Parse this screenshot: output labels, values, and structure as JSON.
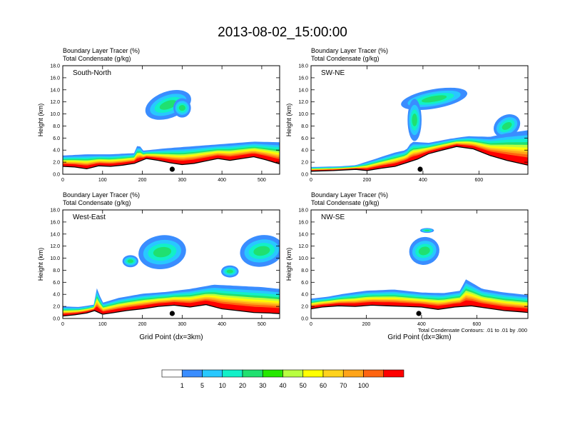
{
  "title": "2013-08-02_15:00:00",
  "colors": {
    "bins": [
      "#ffffff",
      "#3a8dff",
      "#28c8ff",
      "#12f0c8",
      "#20e070",
      "#26e800",
      "#b8ff40",
      "#ffff00",
      "#ffd21c",
      "#ffa418",
      "#ff6410",
      "#ff0000"
    ],
    "contour": "#000000",
    "terrain": "#000000"
  },
  "colorbar": {
    "labels": [
      "1",
      "5",
      "10",
      "20",
      "30",
      "40",
      "50",
      "60",
      "70",
      "100"
    ]
  },
  "footnote": "Total Condensate Contours: .01 to .01 by .000",
  "chart_data": [
    {
      "type": "heatmap",
      "name": "South-North",
      "header1": "Boundary Layer Tracer    (%)",
      "header2": "Total Condensate    (g/kg)",
      "ylabel": "Height (km)",
      "xlabel": "",
      "xlim": [
        0,
        545
      ],
      "ylim": [
        0,
        18
      ],
      "xticks": [
        "0",
        "100",
        "200",
        "300",
        "400",
        "500"
      ],
      "yticks": [
        "0.0",
        "2.0",
        "4.0",
        "6.0",
        "8.0",
        "10.0",
        "12.0",
        "14.0",
        "16.0",
        "18.0"
      ],
      "marker_x": 275,
      "pbl_x": [
        0,
        60,
        120,
        180,
        190,
        200,
        260,
        320,
        360,
        420,
        480,
        545
      ],
      "pbl_top": [
        3.1,
        3.3,
        3.3,
        3.5,
        5.2,
        3.9,
        4.3,
        4.6,
        4.8,
        5.1,
        5.4,
        5.3
      ],
      "terrain_x": [
        0,
        30,
        60,
        90,
        120,
        150,
        180,
        210,
        240,
        270,
        300,
        330,
        360,
        390,
        420,
        450,
        480,
        510,
        545
      ],
      "terrain_z": [
        1.3,
        1.2,
        0.9,
        1.4,
        1.3,
        1.5,
        1.8,
        2.6,
        2.3,
        1.9,
        1.6,
        1.8,
        2.2,
        2.6,
        2.3,
        2.6,
        2.9,
        2.4,
        1.7
      ]
    },
    {
      "type": "heatmap",
      "name": "SW-NE",
      "header1": "Boundary Layer Tracer    (%)",
      "header2": "Total Condensate    (g/kg)",
      "ylabel": "Height (km)",
      "xlabel": "",
      "xlim": [
        0,
        775
      ],
      "ylim": [
        0,
        18
      ],
      "xticks": [
        "0",
        "200",
        "400",
        "600"
      ],
      "yticks": [
        "0.0",
        "2.0",
        "4.0",
        "6.0",
        "8.0",
        "10.0",
        "12.0",
        "14.0",
        "16.0",
        "18.0"
      ],
      "marker_x": 390,
      "pbl_x": [
        0,
        100,
        160,
        240,
        300,
        340,
        360,
        420,
        500,
        560,
        640,
        700,
        775
      ],
      "pbl_top": [
        1.2,
        1.3,
        1.5,
        2.7,
        3.6,
        4.0,
        5.4,
        5.2,
        5.9,
        6.3,
        6.2,
        6.8,
        7.3
      ],
      "terrain_x": [
        0,
        80,
        160,
        200,
        250,
        300,
        340,
        380,
        420,
        460,
        520,
        580,
        640,
        700,
        775
      ],
      "terrain_z": [
        0.5,
        0.6,
        0.8,
        0.6,
        1.0,
        1.3,
        1.9,
        2.5,
        3.4,
        3.9,
        4.6,
        4.2,
        3.1,
        2.3,
        1.5
      ]
    },
    {
      "type": "heatmap",
      "name": "West-East",
      "header1": "Boundary Layer Tracer    (%)",
      "header2": "Total Condensate    (g/kg)",
      "ylabel": "Height (km)",
      "xlabel": "Grid Point (dx=3km)",
      "xlim": [
        0,
        545
      ],
      "ylim": [
        0,
        18
      ],
      "xticks": [
        "0",
        "100",
        "200",
        "300",
        "400",
        "500"
      ],
      "yticks": [
        "0.0",
        "2.0",
        "4.0",
        "6.0",
        "8.0",
        "10.0",
        "12.0",
        "14.0",
        "16.0",
        "18.0"
      ],
      "marker_x": 275,
      "pbl_x": [
        0,
        40,
        80,
        85,
        100,
        140,
        200,
        260,
        320,
        380,
        440,
        500,
        545
      ],
      "pbl_top": [
        2.0,
        1.9,
        2.3,
        5.1,
        2.6,
        3.4,
        4.1,
        4.4,
        4.9,
        5.6,
        5.4,
        5.2,
        4.9
      ],
      "terrain_x": [
        0,
        30,
        60,
        80,
        100,
        130,
        160,
        200,
        240,
        280,
        320,
        360,
        400,
        440,
        480,
        520,
        545
      ],
      "terrain_z": [
        0.4,
        0.6,
        0.9,
        1.3,
        0.7,
        1.0,
        1.3,
        1.6,
        2.0,
        2.2,
        1.9,
        2.3,
        1.6,
        1.3,
        1.0,
        0.9,
        0.8
      ]
    },
    {
      "type": "heatmap",
      "name": "NW-SE",
      "header1": "Boundary Layer Tracer    (%)",
      "header2": "Total Condensate    (g/kg)",
      "ylabel": "Height (km)",
      "xlabel": "Grid Point (dx=3km)",
      "xlim": [
        0,
        785
      ],
      "ylim": [
        0,
        18
      ],
      "xticks": [
        "0",
        "200",
        "400",
        "600"
      ],
      "yticks": [
        "0.0",
        "2.0",
        "4.0",
        "6.0",
        "8.0",
        "10.0",
        "12.0",
        "14.0",
        "16.0",
        "18.0"
      ],
      "marker_x": 390,
      "pbl_x": [
        0,
        60,
        120,
        200,
        300,
        400,
        480,
        540,
        560,
        620,
        700,
        785
      ],
      "pbl_top": [
        3.3,
        3.6,
        4.1,
        4.6,
        4.8,
        4.3,
        4.2,
        4.6,
        6.5,
        4.9,
        4.3,
        3.9
      ],
      "terrain_x": [
        0,
        40,
        100,
        160,
        220,
        280,
        340,
        400,
        460,
        520,
        580,
        640,
        700,
        760,
        785
      ],
      "terrain_z": [
        1.6,
        1.9,
        2.1,
        2.0,
        2.2,
        2.1,
        2.0,
        1.9,
        1.5,
        1.9,
        2.1,
        1.7,
        1.3,
        1.1,
        1.0
      ]
    }
  ]
}
